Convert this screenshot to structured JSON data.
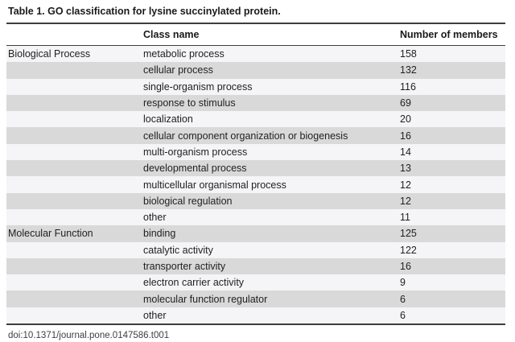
{
  "title": "Table 1.  GO classification for lysine succinylated protein.",
  "columns": {
    "category": "",
    "class_name": "Class name",
    "members": "Number of members"
  },
  "rows": [
    {
      "category": "Biological Process",
      "class_name": "metabolic process",
      "members": "158"
    },
    {
      "category": "",
      "class_name": "cellular process",
      "members": "132"
    },
    {
      "category": "",
      "class_name": "single-organism process",
      "members": "116"
    },
    {
      "category": "",
      "class_name": "response to stimulus",
      "members": "69"
    },
    {
      "category": "",
      "class_name": "localization",
      "members": "20"
    },
    {
      "category": "",
      "class_name": "cellular component organization or biogenesis",
      "members": "16"
    },
    {
      "category": "",
      "class_name": "multi-organism process",
      "members": "14"
    },
    {
      "category": "",
      "class_name": "developmental process",
      "members": "13"
    },
    {
      "category": "",
      "class_name": "multicellular organismal process",
      "members": "12"
    },
    {
      "category": "",
      "class_name": "biological regulation",
      "members": "12"
    },
    {
      "category": "",
      "class_name": "other",
      "members": "11"
    },
    {
      "category": "Molecular Function",
      "class_name": "binding",
      "members": "125"
    },
    {
      "category": "",
      "class_name": "catalytic activity",
      "members": "122"
    },
    {
      "category": "",
      "class_name": "transporter activity",
      "members": "16"
    },
    {
      "category": "",
      "class_name": "electron carrier activity",
      "members": "9"
    },
    {
      "category": "",
      "class_name": "molecular function regulator",
      "members": "6"
    },
    {
      "category": "",
      "class_name": "other",
      "members": "6"
    }
  ],
  "footer_doi": "doi:10.1371/journal.pone.0147586.t001",
  "colors": {
    "stripe_gray": "#d9d9d9",
    "stripe_light": "#f5f5f7",
    "rule": "#3d3d3d"
  }
}
